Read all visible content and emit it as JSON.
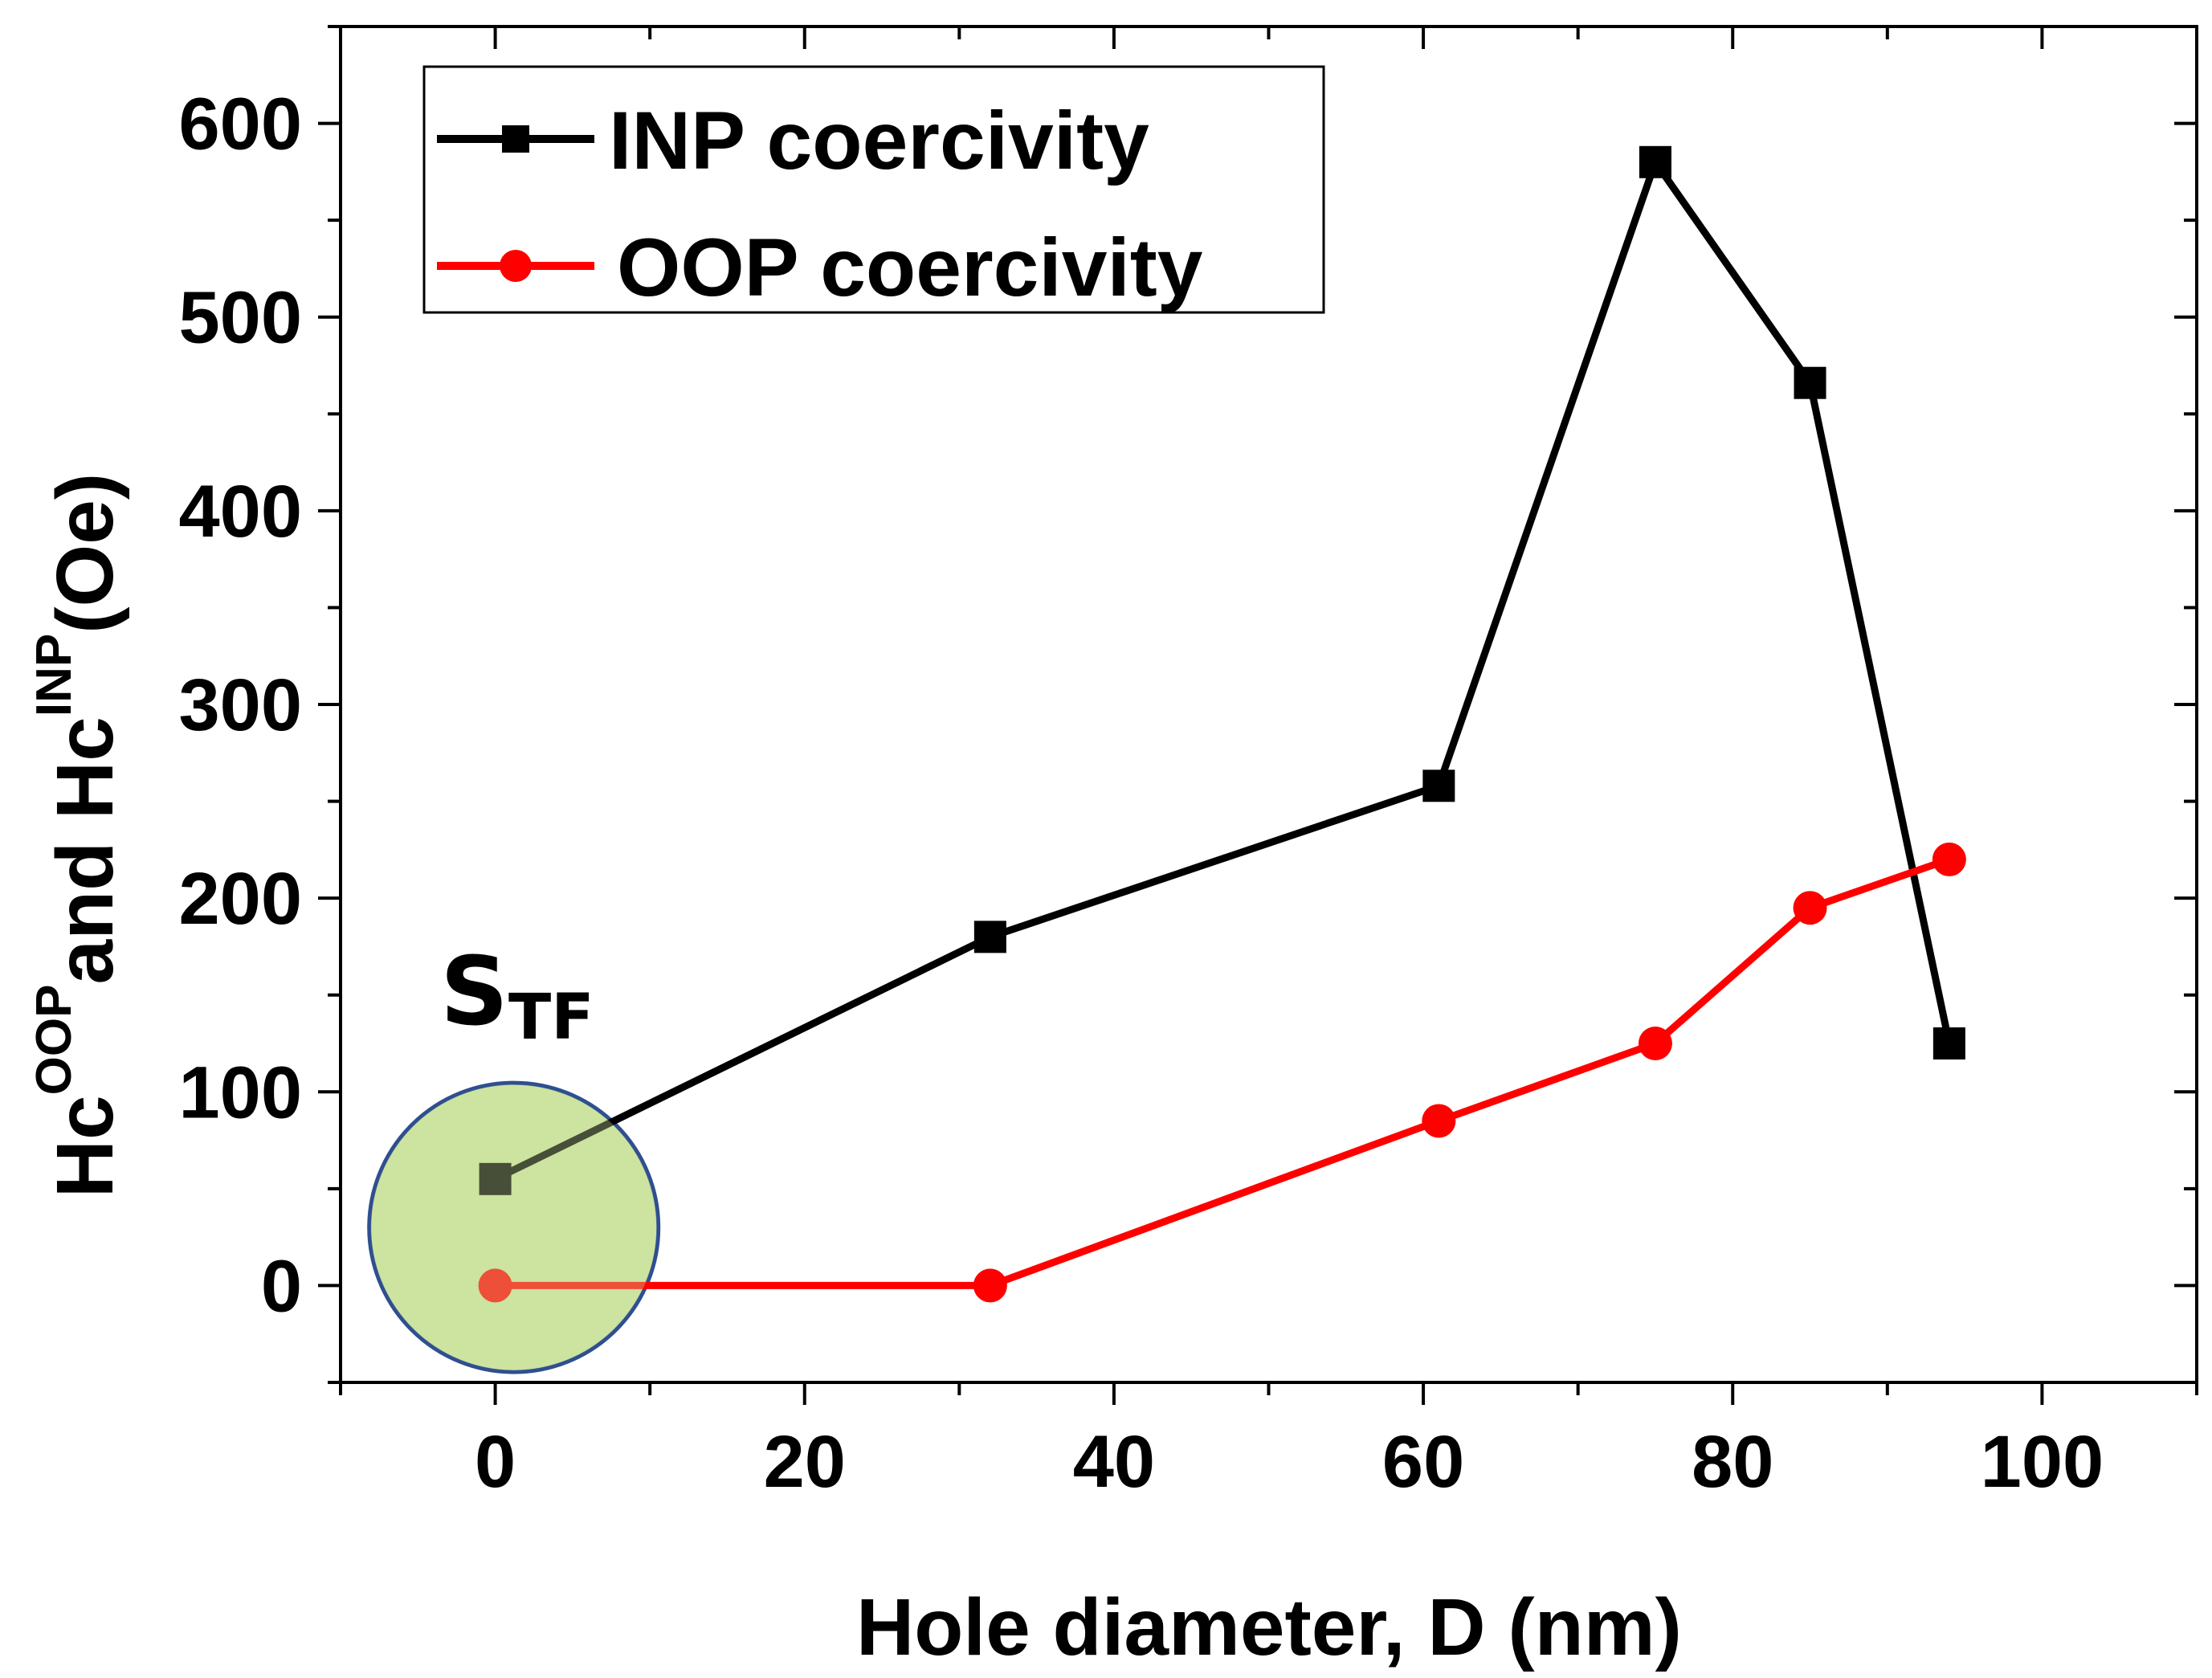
{
  "chart_data": {
    "type": "line",
    "xlabel": "Hole diameter, D (nm)",
    "ylabel": {
      "part1": "Hc",
      "sup1": "OOP",
      "part2": "and Hc",
      "sup2": "INP",
      "part3": "(Oe)"
    },
    "xlim": [
      -10,
      110
    ],
    "ylim": [
      -50,
      650
    ],
    "x_ticks": [
      0,
      20,
      40,
      60,
      80,
      100
    ],
    "y_ticks": [
      0,
      100,
      200,
      300,
      400,
      500,
      600
    ],
    "series": [
      {
        "name": "INP coercivity",
        "color": "#000000",
        "marker": "square",
        "x": [
          0,
          32,
          61,
          75,
          85,
          94
        ],
        "y": [
          55,
          180,
          258,
          580,
          466,
          125
        ]
      },
      {
        "name": "OOP coercivity",
        "color": "#ff0000",
        "marker": "circle",
        "x": [
          0,
          32,
          61,
          75,
          85,
          94
        ],
        "y": [
          0,
          0,
          85,
          125,
          195,
          220
        ]
      }
    ],
    "legend_position": "top-left",
    "annotation": {
      "main": "S",
      "sub": "TF",
      "highlight_fill": "#cde3a0",
      "highlight_stroke": "#2f4f8f"
    }
  }
}
